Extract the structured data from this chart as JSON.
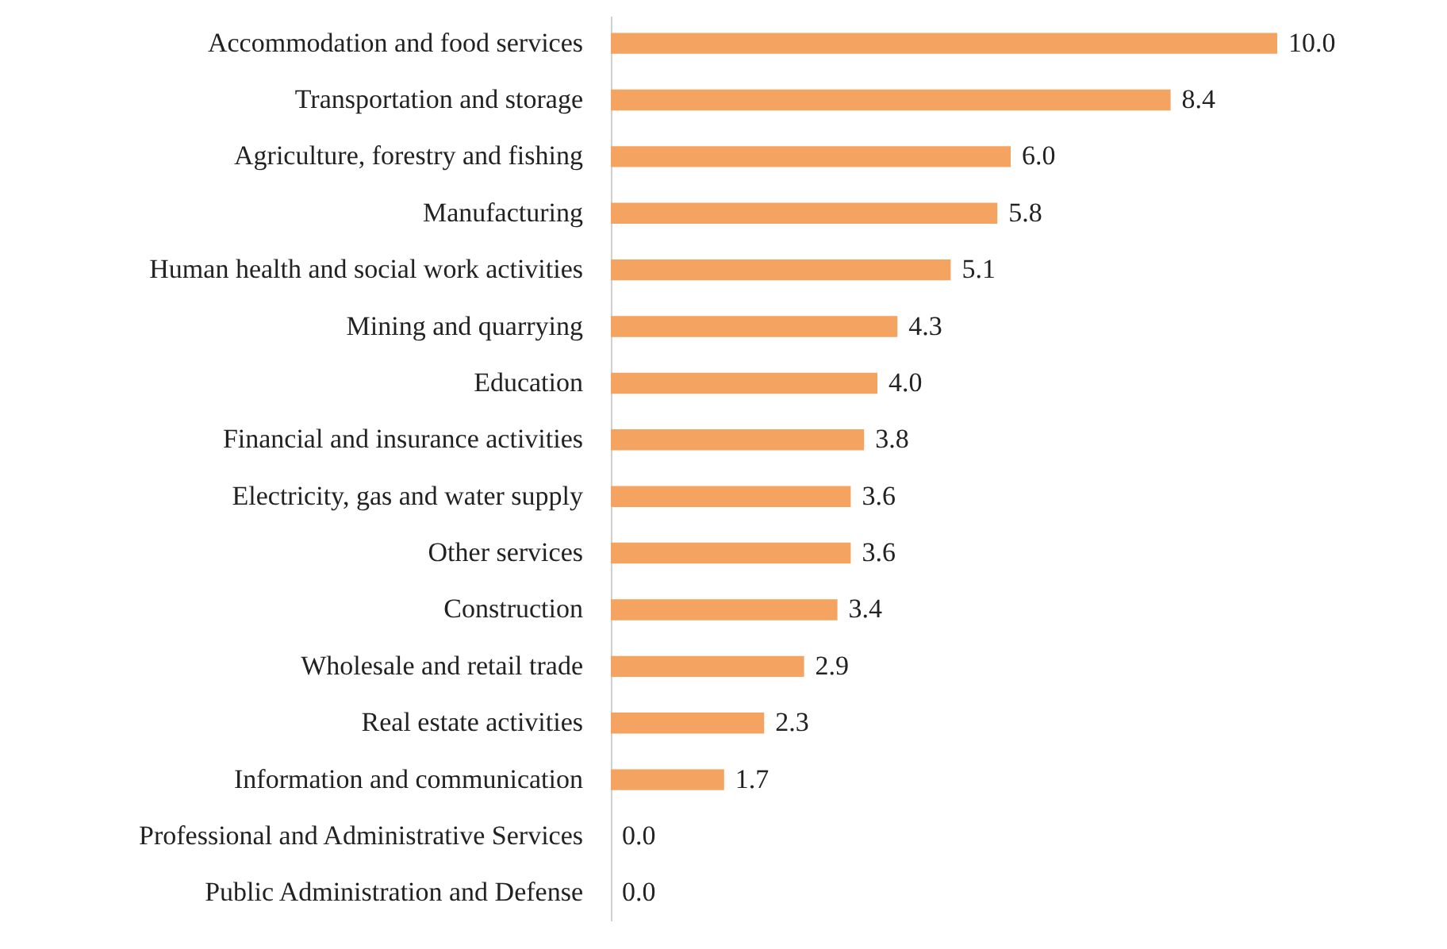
{
  "chart_data": {
    "type": "bar",
    "orientation": "horizontal",
    "color": "#f4a460",
    "categories": [
      "Accommodation and food services",
      "Transportation and storage",
      "Agriculture, forestry and fishing",
      "Manufacturing",
      "Human health and social work activities",
      "Mining and quarrying",
      "Education",
      "Financial and insurance activities",
      "Electricity, gas and water supply",
      "Other services",
      "Construction",
      "Wholesale and retail trade",
      "Real estate activities",
      "Information and communication",
      "Professional and Administrative Services",
      "Public Administration and Defense"
    ],
    "values": [
      10.0,
      8.4,
      6.0,
      5.8,
      5.1,
      4.3,
      4.0,
      3.8,
      3.6,
      3.6,
      3.4,
      2.9,
      2.3,
      1.7,
      0.0,
      0.0
    ],
    "value_labels": [
      "10.0",
      "8.4",
      "6.0",
      "5.8",
      "5.1",
      "4.3",
      "4.0",
      "3.8",
      "3.6",
      "3.6",
      "3.4",
      "2.9",
      "2.3",
      "1.7",
      "0.0",
      "0.0"
    ]
  }
}
